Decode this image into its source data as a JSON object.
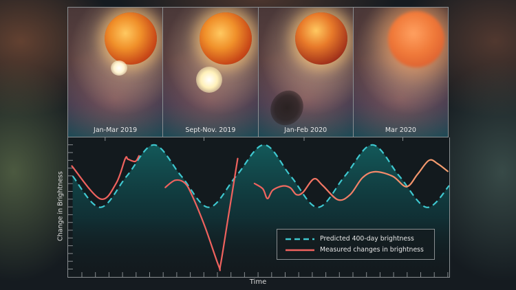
{
  "panels": [
    {
      "label": "Jan-Mar 2019",
      "feature": "bright-plume"
    },
    {
      "label": "Sept-Nov. 2019",
      "feature": "hot-blob"
    },
    {
      "label": "Jan-Feb 2020",
      "feature": "dark-dust-cloud"
    },
    {
      "label": "Mar 2020",
      "feature": "dimmed-star"
    }
  ],
  "colors": {
    "predicted": "#3fc8d0",
    "measured_start": "#f0625e",
    "measured_end": "#f5a070",
    "fill": "#0f5a5a"
  },
  "chart_data": {
    "type": "line",
    "xlabel": "Time",
    "ylabel": "Change in Brightness",
    "xlim": [
      0,
      100
    ],
    "ylim": [
      0,
      100
    ],
    "grid": false,
    "legend_position": "bottom-right",
    "series": [
      {
        "name": "Predicted 400-day brightness",
        "style": "dashed",
        "segments": [
          {
            "x": [
              1.2,
              8.4,
              15.4,
              22.5,
              29.7,
              36.9,
              44.1,
              51.4,
              58.4,
              65.5,
              72.6,
              79.8,
              86.9,
              94.0,
              100
            ],
            "y": [
              72.3,
              49.9,
              72.3,
              94.7,
              72.3,
              49.9,
              72.3,
              94.7,
              72.3,
              49.9,
              72.3,
              94.7,
              72.3,
              49.9,
              65.5
            ]
          }
        ]
      },
      {
        "name": "Measured changes in brightness",
        "style": "solid",
        "segments": [
          {
            "x": [
              1.0,
              8.4,
              12.6,
              15.0,
              15.7,
              17.6,
              18.6
            ],
            "y": [
              79.5,
              56.0,
              67.1,
              84.9,
              84.4,
              82.8,
              86.8
            ]
          },
          {
            "x": [
              25.5,
              28.1,
              30.7,
              32.7,
              35.9,
              39.5,
              40.0,
              41.9,
              44.5
            ],
            "y": [
              64.2,
              69.3,
              67.1,
              57.3,
              36.0,
              8.0,
              8.9,
              40.9,
              84.9
            ]
          },
          {
            "x": [
              48.9,
              51.1,
              52.3,
              53.7,
              56.3,
              58.3,
              59.9,
              61.6,
              64.5,
              66.8,
              70.8,
              74.0,
              77.3,
              80.6,
              85.2,
              88.8,
              91.7,
              94.7,
              97.0,
              99.6
            ],
            "y": [
              67.0,
              63.1,
              56.2,
              62.2,
              65.2,
              63.9,
              59.0,
              60.6,
              70.3,
              65.5,
              55.3,
              59.0,
              71.3,
              75.4,
              72.1,
              64.7,
              73.7,
              83.6,
              81.1,
              75.7
            ]
          }
        ]
      }
    ]
  }
}
